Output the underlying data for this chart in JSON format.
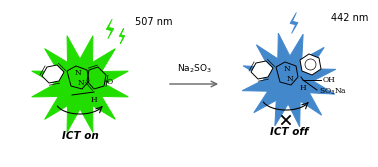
{
  "bg_color": "#ffffff",
  "green_color": "#22dd00",
  "blue_color": "#4488cc",
  "arrow_color": "#666666",
  "text_color": "#000000",
  "label_507": "507 nm",
  "label_442": "442 nm",
  "label_na2so3": "Na$_2$SO$_3$",
  "label_ict_on": "ICT on",
  "label_ict_off": "ICT off",
  "label_so3na": "SO$_3$Na",
  "figsize": [
    3.78,
    1.67
  ],
  "dpi": 100
}
